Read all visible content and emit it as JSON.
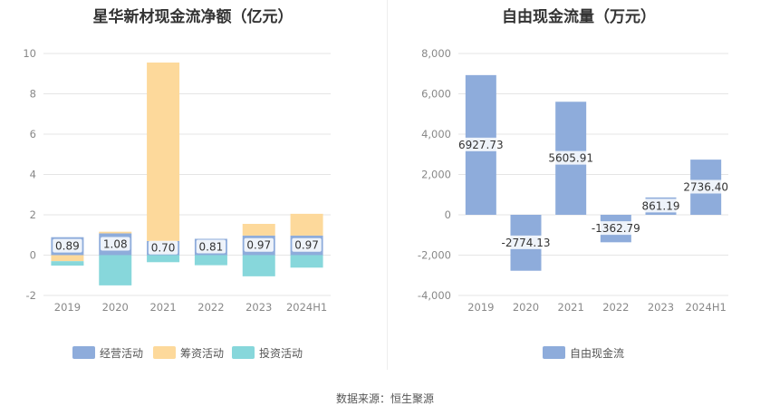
{
  "colors": {
    "operating": "#8eacdb",
    "financing": "#fdd99b",
    "investing": "#87d7db",
    "free_cash_flow": "#8eacdb",
    "grid": "#e5e5e5",
    "axis_text": "#888888"
  },
  "source_text": "数据来源：恒生聚源",
  "chart_data": [
    {
      "type": "bar",
      "stacked": true,
      "title": "星华新材现金流净额（亿元）",
      "categories": [
        "2019",
        "2020",
        "2021",
        "2022",
        "2023",
        "2024H1"
      ],
      "ylim": [
        -2,
        10
      ],
      "yticks": [
        -2,
        0,
        2,
        4,
        6,
        8,
        10
      ],
      "series": [
        {
          "name": "经营活动",
          "color": "#8eacdb",
          "values": [
            0.89,
            1.08,
            0.7,
            0.81,
            0.97,
            0.97
          ],
          "labels": [
            "0.89",
            "1.08",
            "0.70",
            "0.81",
            "0.97",
            "0.97"
          ]
        },
        {
          "name": "筹资活动",
          "color": "#fdd99b",
          "values": [
            -0.3,
            0.08,
            8.85,
            0.0,
            0.58,
            1.08
          ]
        },
        {
          "name": "投资活动",
          "color": "#87d7db",
          "values": [
            -0.22,
            -1.5,
            -0.35,
            -0.5,
            -1.05,
            -0.62
          ]
        }
      ],
      "legend": [
        "经营活动",
        "筹资活动",
        "投资活动"
      ]
    },
    {
      "type": "bar",
      "title": "自由现金流量（万元）",
      "categories": [
        "2019",
        "2020",
        "2021",
        "2022",
        "2023",
        "2024H1"
      ],
      "ylim": [
        -4000,
        8000
      ],
      "yticks": [
        -4000,
        -2000,
        0,
        2000,
        4000,
        6000,
        8000
      ],
      "ytick_labels": [
        "-4,000",
        "-2,000",
        "0",
        "2,000",
        "4,000",
        "6,000",
        "8,000"
      ],
      "series": [
        {
          "name": "自由现金流",
          "color": "#8eacdb",
          "values": [
            6927.73,
            -2774.13,
            5605.91,
            -1362.79,
            861.19,
            2736.4
          ],
          "labels": [
            "6927.73",
            "-2774.13",
            "5605.91",
            "-1362.79",
            "861.19",
            "2736.40"
          ]
        }
      ],
      "legend": [
        "自由现金流"
      ]
    }
  ]
}
